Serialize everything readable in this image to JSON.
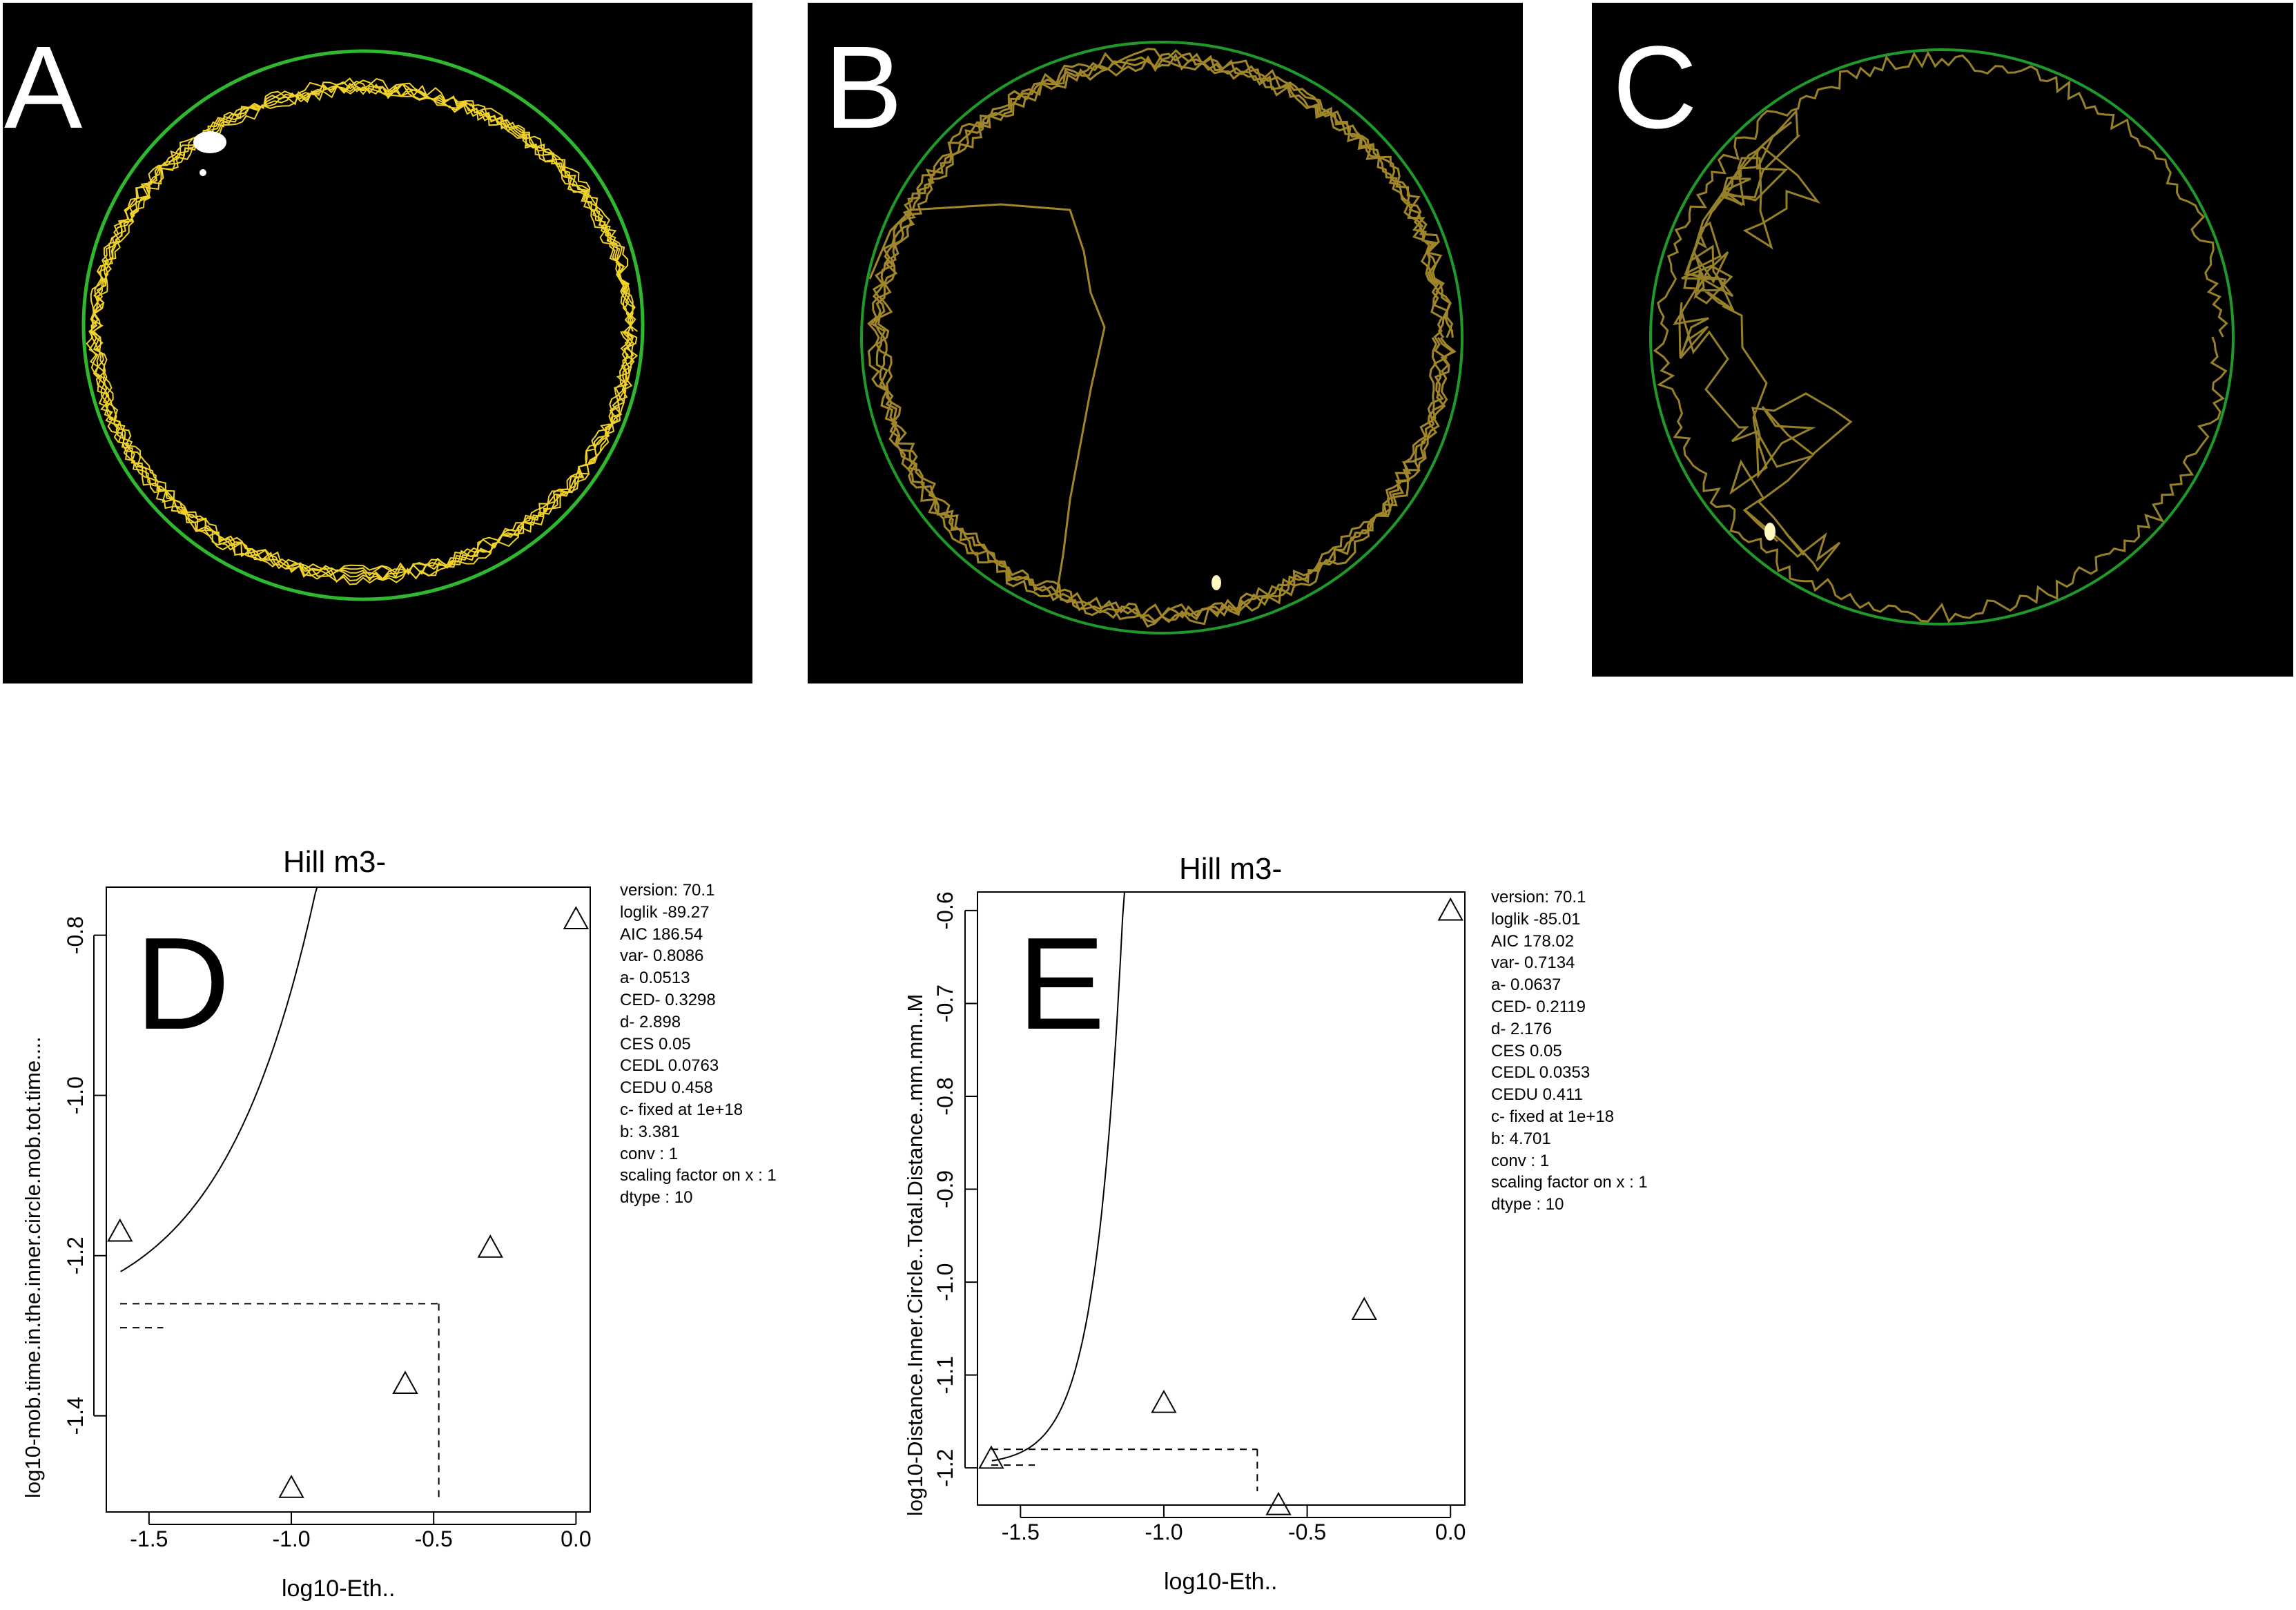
{
  "panels": [
    {
      "letter": "A",
      "track_color": "#f0d22a",
      "arena_color": "#2fb82f"
    },
    {
      "letter": "B",
      "track_color": "#a08628",
      "arena_color": "#1f9a2a"
    },
    {
      "letter": "C",
      "track_color": "#96802a",
      "arena_color": "#1f9a2a"
    }
  ],
  "chart_data": [
    {
      "type": "scatter",
      "letter": "D",
      "title": "Hill m3-",
      "xlabel": "log10-Eth..",
      "ylabel": "log10-mob.time.in.the.inner.circle.mob.tot.time....",
      "xlim": [
        -1.65,
        0.05
      ],
      "ylim": [
        -1.52,
        -0.74
      ],
      "xticks": [
        -1.5,
        -1.0,
        -0.5,
        0.0
      ],
      "xtick_labels": [
        "-1.5",
        "-1.0",
        "-0.5",
        "0.0"
      ],
      "yticks": [
        -0.8,
        -1.0,
        -1.2,
        -1.4
      ],
      "ytick_labels": [
        "-0.8",
        "-1.0",
        "-1.2",
        "-1.4"
      ],
      "points": [
        {
          "x": -1.602,
          "y": -1.17
        },
        {
          "x": -1.0,
          "y": -1.49
        },
        {
          "x": -0.6,
          "y": -1.36
        },
        {
          "x": -0.301,
          "y": -1.19
        },
        {
          "x": 0.0,
          "y": -0.78
        }
      ],
      "curve": {
        "y0": -1.29,
        "ext": 0.07,
        "k": 1.3
      },
      "ced": -0.482,
      "ced_response": -1.26,
      "stats": [
        "version: 70.1",
        "loglik   -89.27",
        "AIC   186.54",
        "var-   0.8086",
        "a-   0.0513",
        "CED-   0.3298",
        "d-   2.898",
        "CES   0.05",
        "CEDL   0.0763",
        "CEDU   0.458",
        "c-  fixed at 1e+18",
        "b:  3.381",
        "conv : 1",
        "scaling factor on x :  1",
        "dtype :  10"
      ]
    },
    {
      "type": "scatter",
      "letter": "E",
      "title": "Hill m3-",
      "xlabel": "log10-Eth..",
      "ylabel": "log10-Distance.Inner.Circle..Total.Distance..mm.mm..M",
      "xlim": [
        -1.65,
        0.05
      ],
      "ylim": [
        -1.24,
        -0.58
      ],
      "xticks": [
        -1.5,
        -1.0,
        -0.5,
        0.0
      ],
      "xtick_labels": [
        "-1.5",
        "-1.0",
        "-0.5",
        "0.0"
      ],
      "yticks": [
        -0.6,
        -0.7,
        -0.8,
        -0.9,
        -1.0,
        -1.1,
        -1.2
      ],
      "ytick_labels": [
        "-0.6",
        "-0.7",
        "-0.8",
        "-0.9",
        "-1.0",
        "-1.1",
        "-1.2"
      ],
      "points": [
        {
          "x": -1.602,
          "y": -1.19
        },
        {
          "x": -1.0,
          "y": -1.13
        },
        {
          "x": -0.6,
          "y": -1.24
        },
        {
          "x": -0.301,
          "y": -1.03
        },
        {
          "x": 0.0,
          "y": -0.6
        }
      ],
      "curve": {
        "y0": -1.197,
        "ext": 0.0047,
        "k": 4.6
      },
      "ced": -0.674,
      "ced_response": -1.18,
      "stats": [
        "version: 70.1",
        "loglik   -85.01",
        "AIC   178.02",
        "var-   0.7134",
        "a-   0.0637",
        "CED-   0.2119",
        "d-   2.176",
        "CES   0.05",
        "CEDL   0.0353",
        "CEDU   0.411",
        "c-  fixed at 1e+18",
        "b:  4.701",
        "conv : 1",
        "scaling factor on x :  1",
        "dtype :  10"
      ]
    }
  ]
}
